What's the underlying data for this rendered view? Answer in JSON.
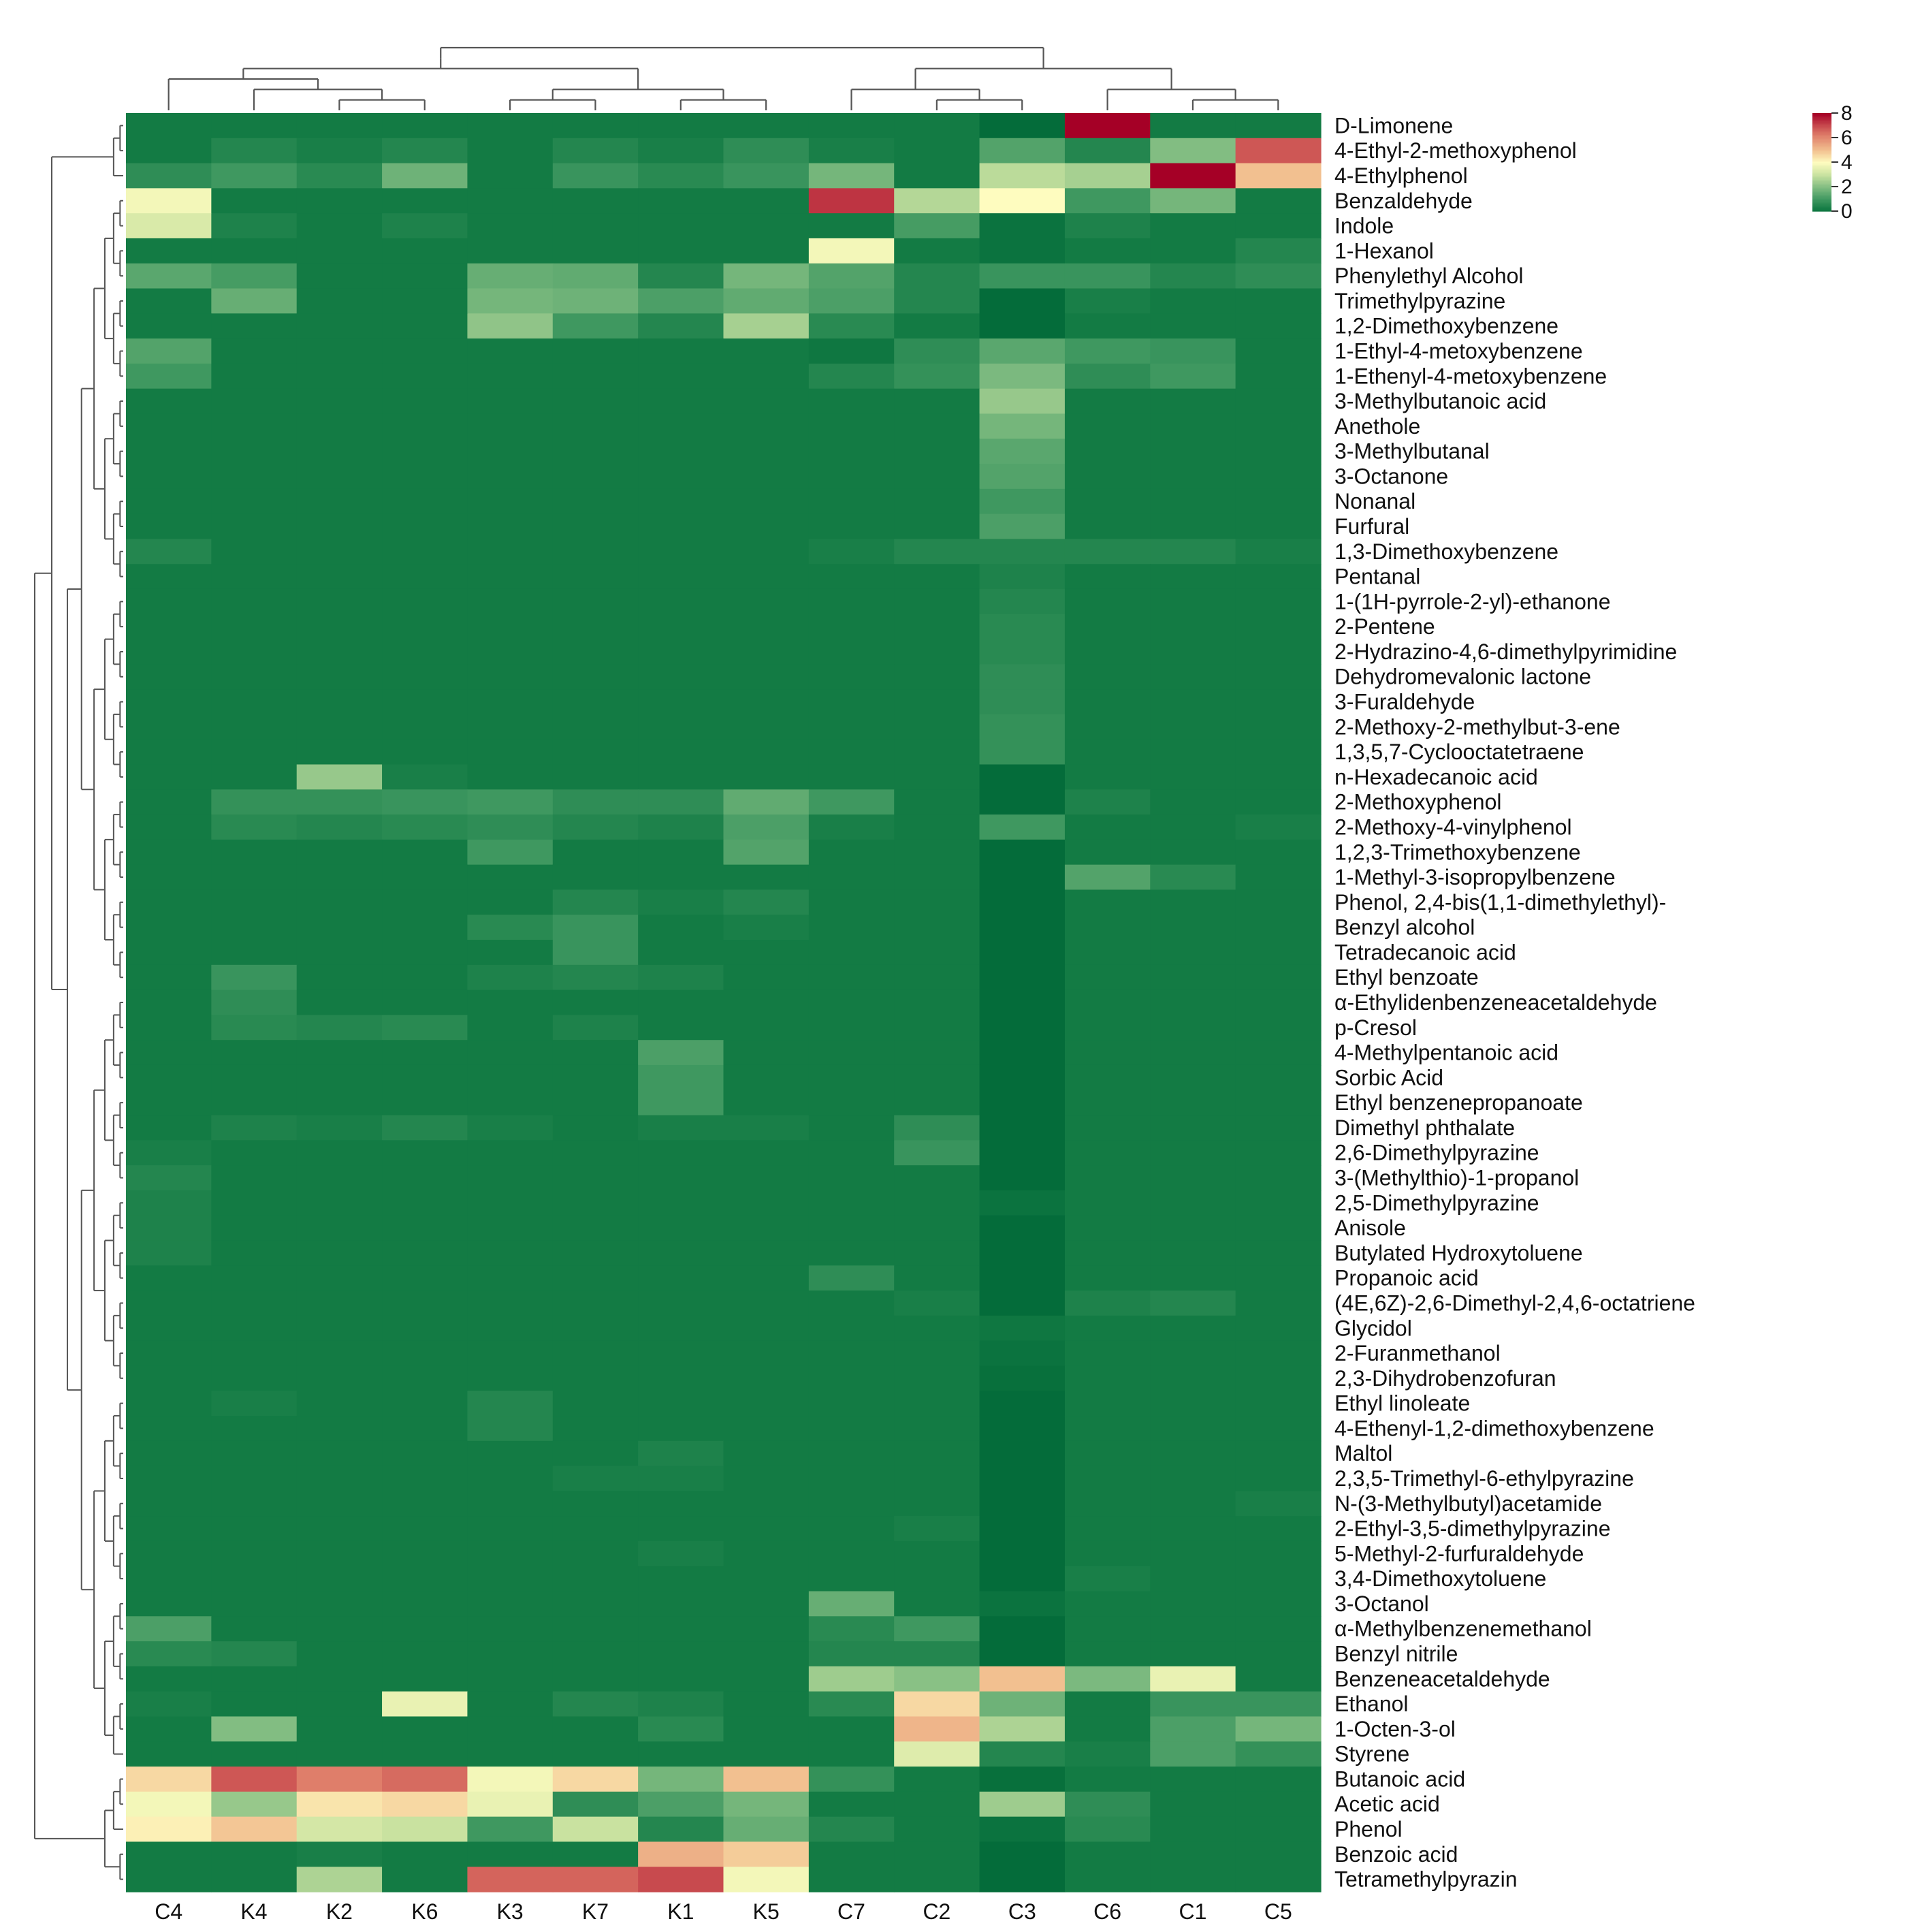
{
  "chart_data": {
    "type": "heatmap",
    "columns": [
      "C4",
      "K4",
      "K2",
      "K6",
      "K3",
      "K7",
      "K1",
      "K5",
      "C7",
      "C2",
      "C3",
      "C6",
      "C1",
      "C5"
    ],
    "rows": [
      "D-Limonene",
      "4-Ethyl-2-methoxyphenol",
      "4-Ethylphenol",
      "Benzaldehyde",
      "Indole",
      "1-Hexanol",
      "Phenylethyl Alcohol",
      "Trimethylpyrazine",
      "1,2-Dimethoxybenzene",
      "1-Ethyl-4-metoxybenzene",
      "1-Ethenyl-4-metoxybenzene",
      "3-Methylbutanoic acid",
      "Anethole",
      "3-Methylbutanal",
      "3-Octanone",
      "Nonanal",
      "Furfural",
      "1,3-Dimethoxybenzene",
      "Pentanal",
      "1-(1H-pyrrole-2-yl)-ethanone",
      "2-Pentene",
      "2-Hydrazino-4,6-dimethylpyrimidine",
      "Dehydromevalonic lactone",
      "3-Furaldehyde",
      "2-Methoxy-2-methylbut-3-ene",
      "1,3,5,7-Cyclooctatetraene",
      "n-Hexadecanoic acid",
      "2-Methoxyphenol",
      "2-Methoxy-4-vinylphenol",
      "1,2,3-Trimethoxybenzene",
      "1-Methyl-3-isopropylbenzene",
      "Phenol, 2,4-bis(1,1-dimethylethyl)-",
      "Benzyl alcohol",
      "Tetradecanoic acid",
      "Ethyl benzoate",
      "α-Ethylidenbenzeneacetaldehyde",
      "p-Cresol",
      "4-Methylpentanoic acid",
      "Sorbic Acid",
      "Ethyl benzenepropanoate",
      "Dimethyl phthalate",
      "2,6-Dimethylpyrazine",
      "3-(Methylthio)-1-propanol",
      "2,5-Dimethylpyrazine",
      "Anisole",
      "Butylated Hydroxytoluene",
      "Propanoic acid",
      "(4E,6Z)-2,6-Dimethyl-2,4,6-octatriene",
      "Glycidol",
      "2-Furanmethanol",
      "2,3-Dihydrobenzofuran",
      "Ethyl linoleate",
      "4-Ethenyl-1,2-dimethoxybenzene",
      "Maltol",
      "2,3,5-Trimethyl-6-ethylpyrazine",
      "N-(3-Methylbutyl)acetamide",
      "2-Ethyl-3,5-dimethylpyrazine",
      "5-Methyl-2-furfuraldehyde",
      "3,4-Dimethoxytoluene",
      "3-Octanol",
      "α-Methylbenzenemethanol",
      "Benzyl nitrile",
      "Benzeneacetaldehyde",
      "Ethanol",
      "1-Octen-3-ol",
      "Styrene",
      "Butanoic acid",
      "Acetic acid",
      "Phenol",
      "Benzoic acid",
      "Tetramethylpyrazin"
    ],
    "values": [
      [
        0.2,
        0.2,
        0.2,
        0.2,
        0.2,
        0.2,
        0.2,
        0.2,
        0.2,
        0.2,
        -0.2,
        8.0,
        0.2,
        0.2
      ],
      [
        0.2,
        0.5,
        0.3,
        0.5,
        0.2,
        0.5,
        0.3,
        0.7,
        0.3,
        0.2,
        1.3,
        0.5,
        2.0,
        6.8
      ],
      [
        0.7,
        1.0,
        0.6,
        1.7,
        0.2,
        0.9,
        0.6,
        0.9,
        1.8,
        0.2,
        2.8,
        2.5,
        8.0,
        5.0
      ],
      [
        3.8,
        0.2,
        0.2,
        0.2,
        0.2,
        0.2,
        0.2,
        0.2,
        7.3,
        2.7,
        4.0,
        1.0,
        1.8,
        0.2
      ],
      [
        3.3,
        0.4,
        0.2,
        0.4,
        0.2,
        0.2,
        0.2,
        0.2,
        0.2,
        1.1,
        0.0,
        0.4,
        0.2,
        0.2
      ],
      [
        0.2,
        0.2,
        0.2,
        0.2,
        0.2,
        0.2,
        0.2,
        0.2,
        3.8,
        0.2,
        0.0,
        0.2,
        0.2,
        0.5
      ],
      [
        1.4,
        1.1,
        0.2,
        0.2,
        1.6,
        1.5,
        0.5,
        1.8,
        1.3,
        0.5,
        0.9,
        0.9,
        0.5,
        0.7
      ],
      [
        0.2,
        1.6,
        0.2,
        0.2,
        1.8,
        1.7,
        1.2,
        1.5,
        1.2,
        0.5,
        -0.2,
        0.3,
        0.2,
        0.2
      ],
      [
        0.2,
        0.2,
        0.2,
        0.2,
        2.2,
        1.0,
        0.5,
        2.5,
        0.6,
        0.2,
        -0.2,
        0.2,
        0.2,
        0.2
      ],
      [
        1.3,
        0.2,
        0.2,
        0.2,
        0.2,
        0.2,
        0.2,
        0.2,
        0.1,
        0.7,
        1.4,
        1.0,
        0.9,
        0.2
      ],
      [
        1.0,
        0.2,
        0.2,
        0.2,
        0.2,
        0.2,
        0.2,
        0.2,
        0.5,
        0.8,
        1.9,
        0.7,
        1.0,
        0.2
      ],
      [
        0.2,
        0.2,
        0.2,
        0.2,
        0.2,
        0.2,
        0.2,
        0.2,
        0.2,
        0.2,
        2.3,
        0.2,
        0.2,
        0.2
      ],
      [
        0.2,
        0.2,
        0.2,
        0.2,
        0.2,
        0.2,
        0.2,
        0.2,
        0.2,
        0.2,
        1.8,
        0.2,
        0.2,
        0.2
      ],
      [
        0.2,
        0.2,
        0.2,
        0.2,
        0.2,
        0.2,
        0.2,
        0.2,
        0.2,
        0.2,
        1.4,
        0.2,
        0.2,
        0.2
      ],
      [
        0.2,
        0.2,
        0.2,
        0.2,
        0.2,
        0.2,
        0.2,
        0.2,
        0.2,
        0.2,
        1.3,
        0.2,
        0.2,
        0.2
      ],
      [
        0.2,
        0.2,
        0.2,
        0.2,
        0.2,
        0.2,
        0.2,
        0.2,
        0.2,
        0.2,
        1.0,
        0.2,
        0.2,
        0.2
      ],
      [
        0.2,
        0.2,
        0.2,
        0.2,
        0.2,
        0.2,
        0.2,
        0.2,
        0.2,
        0.2,
        1.2,
        0.2,
        0.2,
        0.2
      ],
      [
        0.5,
        0.2,
        0.2,
        0.2,
        0.2,
        0.2,
        0.2,
        0.2,
        0.3,
        0.5,
        0.5,
        0.5,
        0.5,
        0.3
      ],
      [
        0.2,
        0.2,
        0.2,
        0.2,
        0.2,
        0.2,
        0.2,
        0.2,
        0.2,
        0.2,
        0.4,
        0.2,
        0.2,
        0.2
      ],
      [
        0.2,
        0.2,
        0.2,
        0.2,
        0.2,
        0.2,
        0.2,
        0.2,
        0.2,
        0.2,
        0.5,
        0.2,
        0.2,
        0.2
      ],
      [
        0.2,
        0.2,
        0.2,
        0.2,
        0.2,
        0.2,
        0.2,
        0.2,
        0.2,
        0.2,
        0.6,
        0.2,
        0.2,
        0.2
      ],
      [
        0.2,
        0.2,
        0.2,
        0.2,
        0.2,
        0.2,
        0.2,
        0.2,
        0.2,
        0.2,
        0.6,
        0.2,
        0.2,
        0.2
      ],
      [
        0.2,
        0.2,
        0.2,
        0.2,
        0.2,
        0.2,
        0.2,
        0.2,
        0.2,
        0.2,
        0.7,
        0.2,
        0.2,
        0.2
      ],
      [
        0.2,
        0.2,
        0.2,
        0.2,
        0.2,
        0.2,
        0.2,
        0.2,
        0.2,
        0.2,
        0.7,
        0.2,
        0.2,
        0.2
      ],
      [
        0.2,
        0.2,
        0.2,
        0.2,
        0.2,
        0.2,
        0.2,
        0.2,
        0.2,
        0.2,
        0.8,
        0.2,
        0.2,
        0.2
      ],
      [
        0.2,
        0.2,
        0.2,
        0.2,
        0.2,
        0.2,
        0.2,
        0.2,
        0.2,
        0.2,
        0.8,
        0.2,
        0.2,
        0.2
      ],
      [
        0.2,
        0.2,
        2.3,
        0.3,
        0.2,
        0.2,
        0.2,
        0.2,
        0.2,
        0.2,
        -0.2,
        0.2,
        0.2,
        0.2
      ],
      [
        0.2,
        0.8,
        0.8,
        0.9,
        1.0,
        0.7,
        0.7,
        1.5,
        1.0,
        0.2,
        -0.2,
        0.4,
        0.2,
        0.2
      ],
      [
        0.2,
        0.6,
        0.5,
        0.6,
        0.7,
        0.5,
        0.4,
        1.2,
        0.3,
        0.2,
        1.0,
        0.2,
        0.2,
        0.3
      ],
      [
        0.2,
        0.2,
        0.2,
        0.2,
        1.0,
        0.2,
        0.2,
        1.3,
        0.2,
        0.2,
        -0.2,
        0.2,
        0.2,
        0.2
      ],
      [
        0.2,
        0.2,
        0.2,
        0.2,
        0.2,
        0.2,
        0.2,
        0.2,
        0.2,
        0.2,
        -0.2,
        1.3,
        0.6,
        0.2
      ],
      [
        0.2,
        0.2,
        0.2,
        0.2,
        0.2,
        0.5,
        0.3,
        0.5,
        0.2,
        0.2,
        -0.2,
        0.2,
        0.2,
        0.2
      ],
      [
        0.2,
        0.2,
        0.2,
        0.2,
        0.6,
        0.9,
        0.2,
        0.3,
        0.2,
        0.2,
        -0.2,
        0.2,
        0.2,
        0.2
      ],
      [
        0.2,
        0.2,
        0.2,
        0.2,
        0.2,
        0.9,
        0.2,
        0.2,
        0.2,
        0.2,
        -0.2,
        0.2,
        0.2,
        0.2
      ],
      [
        0.2,
        0.9,
        0.2,
        0.2,
        0.4,
        0.5,
        0.4,
        0.2,
        0.2,
        0.2,
        -0.2,
        0.2,
        0.2,
        0.2
      ],
      [
        0.2,
        0.7,
        0.2,
        0.2,
        0.2,
        0.2,
        0.2,
        0.2,
        0.2,
        0.2,
        -0.2,
        0.2,
        0.2,
        0.2
      ],
      [
        0.2,
        0.6,
        0.5,
        0.6,
        0.2,
        0.4,
        0.2,
        0.2,
        0.2,
        0.2,
        -0.2,
        0.2,
        0.2,
        0.2
      ],
      [
        0.2,
        0.2,
        0.2,
        0.2,
        0.2,
        0.2,
        1.2,
        0.2,
        0.2,
        0.2,
        -0.2,
        0.2,
        0.2,
        0.2
      ],
      [
        0.2,
        0.2,
        0.2,
        0.2,
        0.2,
        0.2,
        1.0,
        0.2,
        0.2,
        0.2,
        -0.2,
        0.2,
        0.2,
        0.2
      ],
      [
        0.2,
        0.2,
        0.2,
        0.2,
        0.2,
        0.2,
        1.0,
        0.2,
        0.2,
        0.2,
        -0.2,
        0.2,
        0.2,
        0.2
      ],
      [
        0.2,
        0.4,
        0.3,
        0.5,
        0.3,
        0.2,
        0.3,
        0.3,
        0.2,
        0.7,
        -0.2,
        0.2,
        0.2,
        0.2
      ],
      [
        0.3,
        0.2,
        0.2,
        0.2,
        0.2,
        0.2,
        0.2,
        0.2,
        0.2,
        0.9,
        -0.2,
        0.2,
        0.2,
        0.2
      ],
      [
        0.5,
        0.2,
        0.2,
        0.2,
        0.2,
        0.2,
        0.2,
        0.2,
        0.2,
        0.2,
        -0.2,
        0.2,
        0.2,
        0.2
      ],
      [
        0.4,
        0.2,
        0.2,
        0.2,
        0.2,
        0.2,
        0.2,
        0.2,
        0.2,
        0.2,
        0.0,
        0.2,
        0.2,
        0.2
      ],
      [
        0.4,
        0.2,
        0.2,
        0.2,
        0.2,
        0.2,
        0.2,
        0.2,
        0.2,
        0.2,
        -0.2,
        0.2,
        0.2,
        0.2
      ],
      [
        0.4,
        0.2,
        0.2,
        0.2,
        0.2,
        0.2,
        0.2,
        0.2,
        0.2,
        0.2,
        -0.2,
        0.2,
        0.2,
        0.2
      ],
      [
        0.2,
        0.2,
        0.2,
        0.2,
        0.2,
        0.2,
        0.2,
        0.2,
        0.7,
        0.2,
        -0.2,
        0.2,
        0.2,
        0.2
      ],
      [
        0.2,
        0.2,
        0.2,
        0.2,
        0.2,
        0.2,
        0.2,
        0.2,
        0.2,
        0.3,
        -0.2,
        0.4,
        0.5,
        0.2
      ],
      [
        0.2,
        0.2,
        0.2,
        0.2,
        0.2,
        0.2,
        0.2,
        0.2,
        0.2,
        0.2,
        0.1,
        0.2,
        0.2,
        0.2
      ],
      [
        0.2,
        0.2,
        0.2,
        0.2,
        0.2,
        0.2,
        0.2,
        0.2,
        0.2,
        0.2,
        0.0,
        0.2,
        0.2,
        0.2
      ],
      [
        0.2,
        0.2,
        0.2,
        0.2,
        0.2,
        0.2,
        0.2,
        0.2,
        0.2,
        0.2,
        -0.1,
        0.2,
        0.2,
        0.2
      ],
      [
        0.2,
        0.3,
        0.2,
        0.2,
        0.5,
        0.2,
        0.2,
        0.2,
        0.2,
        0.2,
        -0.2,
        0.2,
        0.2,
        0.2
      ],
      [
        0.2,
        0.2,
        0.2,
        0.2,
        0.5,
        0.2,
        0.2,
        0.2,
        0.2,
        0.2,
        -0.2,
        0.2,
        0.2,
        0.2
      ],
      [
        0.2,
        0.2,
        0.2,
        0.2,
        0.2,
        0.2,
        0.4,
        0.2,
        0.2,
        0.2,
        -0.2,
        0.2,
        0.2,
        0.2
      ],
      [
        0.2,
        0.2,
        0.2,
        0.2,
        0.2,
        0.3,
        0.3,
        0.2,
        0.2,
        0.2,
        -0.2,
        0.2,
        0.2,
        0.2
      ],
      [
        0.2,
        0.2,
        0.2,
        0.2,
        0.2,
        0.2,
        0.2,
        0.2,
        0.2,
        0.2,
        -0.2,
        0.2,
        0.2,
        0.3
      ],
      [
        0.2,
        0.2,
        0.2,
        0.2,
        0.2,
        0.2,
        0.2,
        0.2,
        0.2,
        0.3,
        -0.2,
        0.2,
        0.2,
        0.2
      ],
      [
        0.2,
        0.2,
        0.2,
        0.2,
        0.2,
        0.2,
        0.3,
        0.2,
        0.2,
        0.2,
        -0.2,
        0.2,
        0.2,
        0.2
      ],
      [
        0.2,
        0.2,
        0.2,
        0.2,
        0.2,
        0.2,
        0.2,
        0.2,
        0.2,
        0.2,
        -0.2,
        0.3,
        0.2,
        0.2
      ],
      [
        0.2,
        0.2,
        0.2,
        0.2,
        0.2,
        0.2,
        0.2,
        0.2,
        1.6,
        0.2,
        0.0,
        0.2,
        0.2,
        0.2
      ],
      [
        1.2,
        0.2,
        0.2,
        0.2,
        0.2,
        0.2,
        0.2,
        0.2,
        0.6,
        1.0,
        -0.2,
        0.2,
        0.2,
        0.2
      ],
      [
        0.6,
        0.5,
        0.2,
        0.2,
        0.2,
        0.2,
        0.2,
        0.2,
        0.5,
        0.5,
        -0.2,
        0.2,
        0.2,
        0.2
      ],
      [
        0.2,
        0.2,
        0.2,
        0.2,
        0.2,
        0.2,
        0.2,
        0.2,
        2.4,
        2.1,
        5.0,
        1.9,
        3.6,
        0.2
      ],
      [
        0.3,
        0.2,
        0.2,
        3.6,
        0.2,
        0.5,
        0.4,
        0.2,
        0.6,
        4.6,
        1.7,
        0.2,
        0.9,
        0.9
      ],
      [
        0.2,
        2.0,
        0.2,
        0.2,
        0.2,
        0.2,
        0.6,
        0.2,
        0.2,
        5.2,
        2.6,
        0.2,
        1.2,
        1.8
      ],
      [
        0.2,
        0.2,
        0.2,
        0.2,
        0.2,
        0.2,
        0.2,
        0.2,
        0.2,
        3.4,
        0.5,
        0.3,
        1.2,
        0.8
      ],
      [
        4.6,
        6.8,
        6.2,
        6.5,
        3.8,
        4.6,
        1.8,
        5.0,
        0.8,
        0.2,
        -0.1,
        0.2,
        0.2,
        0.2
      ],
      [
        3.8,
        2.3,
        4.4,
        4.6,
        3.6,
        0.7,
        1.2,
        1.8,
        0.2,
        0.2,
        2.4,
        0.7,
        0.2,
        0.2
      ],
      [
        4.2,
        4.9,
        3.2,
        3.0,
        1.0,
        3.0,
        0.5,
        1.6,
        0.5,
        0.2,
        0.0,
        0.6,
        0.2,
        0.2
      ],
      [
        0.2,
        0.2,
        0.3,
        0.2,
        0.2,
        0.2,
        5.3,
        4.8,
        0.2,
        0.2,
        -0.2,
        0.2,
        0.2,
        0.2
      ],
      [
        0.2,
        0.2,
        2.6,
        0.2,
        6.6,
        6.6,
        7.0,
        3.8,
        0.2,
        0.2,
        -0.2,
        0.2,
        0.2,
        0.2
      ]
    ],
    "color_scale": {
      "range": [
        0,
        8
      ],
      "ticks": [
        "8",
        "6",
        "4",
        "2",
        "0"
      ],
      "stops": [
        {
          "v": -0.3,
          "color": "#006837"
        },
        {
          "v": 0.2,
          "color": "#137b44"
        },
        {
          "v": 1.0,
          "color": "#3f9860"
        },
        {
          "v": 2.0,
          "color": "#82bd82"
        },
        {
          "v": 3.0,
          "color": "#c9e2a0"
        },
        {
          "v": 4.0,
          "color": "#fefcbf"
        },
        {
          "v": 5.0,
          "color": "#f2c090"
        },
        {
          "v": 6.2,
          "color": "#df7e6a"
        },
        {
          "v": 7.0,
          "color": "#c84a4e"
        },
        {
          "v": 8.0,
          "color": "#a50026"
        }
      ]
    },
    "dendrogram_color": "#555555",
    "legend_position": "top-right",
    "title": "",
    "xlabel": "",
    "ylabel": ""
  }
}
